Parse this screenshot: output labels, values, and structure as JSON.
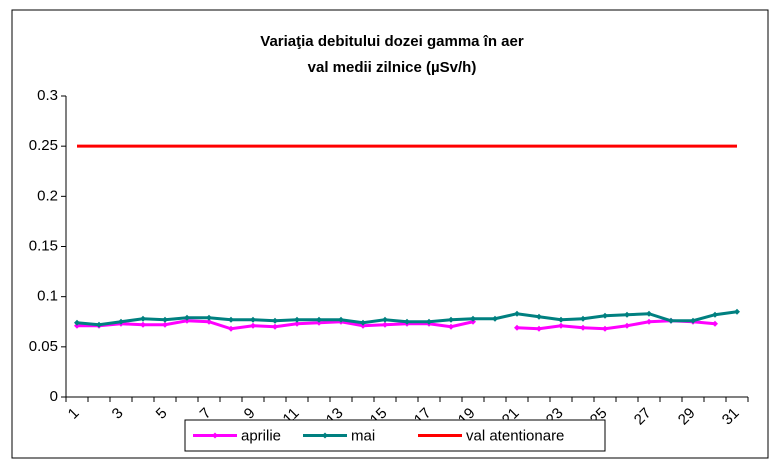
{
  "chart_data": {
    "type": "line",
    "title": [
      "Variaţia debitului dozei gamma în aer",
      "val medii zilnice (µSv/h)"
    ],
    "categories": [
      "1",
      null,
      "3",
      null,
      "5",
      null,
      "7",
      null,
      "9",
      null,
      "11",
      null,
      "13",
      null,
      "15",
      null,
      "17",
      null,
      "19",
      null,
      "21",
      null,
      "23",
      null,
      "25",
      null,
      "27",
      null,
      "29",
      null,
      "31"
    ],
    "series": [
      {
        "name": "aprilie",
        "color": "#ff00ff",
        "marker": true,
        "values": [
          0.071,
          0.071,
          0.073,
          0.072,
          0.072,
          0.076,
          0.075,
          0.068,
          0.071,
          0.07,
          0.073,
          0.074,
          0.075,
          0.071,
          0.072,
          0.073,
          0.073,
          0.07,
          0.075,
          null,
          0.069,
          0.068,
          0.071,
          0.069,
          0.068,
          0.071,
          0.075,
          0.076,
          0.075,
          0.073,
          null
        ]
      },
      {
        "name": "mai",
        "color": "#008080",
        "marker": true,
        "values": [
          0.074,
          0.072,
          0.075,
          0.078,
          0.077,
          0.079,
          0.079,
          0.077,
          0.077,
          0.076,
          0.077,
          0.077,
          0.077,
          0.074,
          0.077,
          0.075,
          0.075,
          0.077,
          0.078,
          0.078,
          0.083,
          0.08,
          0.077,
          0.078,
          0.081,
          0.082,
          0.083,
          0.076,
          0.076,
          0.082,
          0.085
        ]
      },
      {
        "name": "val atentionare",
        "color": "#ff0000",
        "marker": false,
        "values": [
          0.25,
          0.25,
          0.25,
          0.25,
          0.25,
          0.25,
          0.25,
          0.25,
          0.25,
          0.25,
          0.25,
          0.25,
          0.25,
          0.25,
          0.25,
          0.25,
          0.25,
          0.25,
          0.25,
          0.25,
          0.25,
          0.25,
          0.25,
          0.25,
          0.25,
          0.25,
          0.25,
          0.25,
          0.25,
          0.25,
          0.25
        ]
      }
    ],
    "ylim": [
      0,
      0.3
    ],
    "yticks": [
      0,
      0.05,
      0.1,
      0.15,
      0.2,
      0.25,
      0.3
    ],
    "grid": false
  }
}
